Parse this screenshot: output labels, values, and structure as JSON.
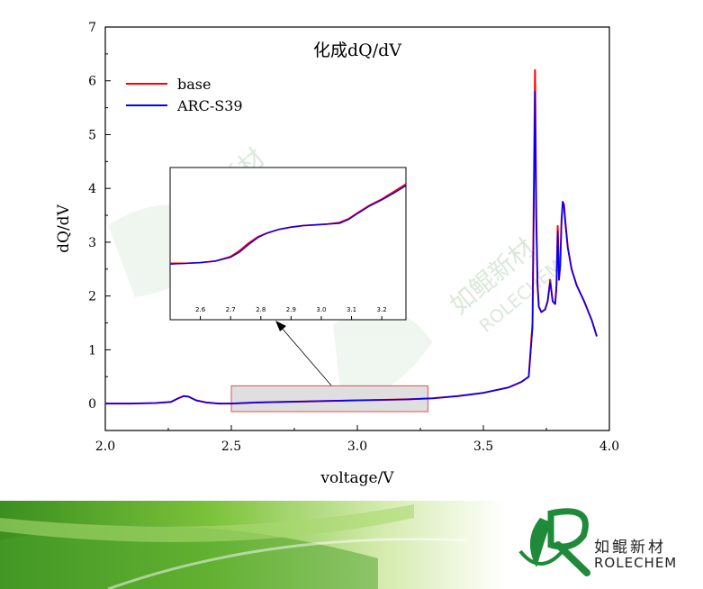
{
  "chart_data": {
    "type": "line",
    "title": "化成dQ/dV",
    "xlabel": "voltage/V",
    "ylabel": "dQ/dV",
    "xlim": [
      2.0,
      4.0
    ],
    "ylim": [
      -0.5,
      7.0
    ],
    "x_ticks": [
      "2.0",
      "2.5",
      "3.0",
      "3.5",
      "4.0"
    ],
    "y_ticks": [
      "0",
      "1",
      "2",
      "3",
      "4",
      "5",
      "6",
      "7"
    ],
    "legend_position": "top-left",
    "series": [
      {
        "name": "base",
        "color": "#ff0000",
        "x": [
          2.0,
          2.1,
          2.2,
          2.26,
          2.29,
          2.31,
          2.33,
          2.36,
          2.4,
          2.45,
          2.5,
          2.6,
          2.7,
          2.8,
          2.9,
          3.0,
          3.1,
          3.2,
          3.3,
          3.4,
          3.5,
          3.6,
          3.65,
          3.68,
          3.695,
          3.705,
          3.71,
          3.715,
          3.72,
          3.73,
          3.745,
          3.755,
          3.765,
          3.775,
          3.785,
          3.79,
          3.795,
          3.8,
          3.805,
          3.81,
          3.815,
          3.82,
          3.825,
          3.835,
          3.85,
          3.87,
          3.9,
          3.93,
          3.95
        ],
        "y": [
          0.0,
          0.0,
          0.01,
          0.03,
          0.1,
          0.14,
          0.13,
          0.06,
          0.02,
          0.0,
          0.0,
          0.02,
          0.03,
          0.04,
          0.05,
          0.06,
          0.07,
          0.08,
          0.1,
          0.14,
          0.2,
          0.3,
          0.4,
          0.5,
          1.5,
          6.2,
          3.5,
          2.2,
          1.8,
          1.7,
          1.75,
          1.9,
          2.3,
          1.9,
          1.85,
          2.2,
          3.3,
          2.3,
          2.6,
          3.4,
          3.75,
          3.7,
          3.4,
          2.9,
          2.5,
          2.2,
          1.9,
          1.55,
          1.25
        ]
      },
      {
        "name": "ARC-S39",
        "color": "#0000ff",
        "x": [
          2.0,
          2.1,
          2.2,
          2.26,
          2.29,
          2.31,
          2.33,
          2.36,
          2.4,
          2.45,
          2.5,
          2.6,
          2.7,
          2.8,
          2.9,
          3.0,
          3.1,
          3.2,
          3.3,
          3.4,
          3.5,
          3.6,
          3.65,
          3.68,
          3.695,
          3.705,
          3.71,
          3.715,
          3.72,
          3.73,
          3.745,
          3.755,
          3.765,
          3.775,
          3.785,
          3.79,
          3.795,
          3.8,
          3.805,
          3.81,
          3.815,
          3.82,
          3.825,
          3.835,
          3.85,
          3.87,
          3.9,
          3.93,
          3.95
        ],
        "y": [
          0.0,
          0.0,
          0.01,
          0.03,
          0.1,
          0.14,
          0.13,
          0.06,
          0.02,
          0.0,
          0.0,
          0.02,
          0.03,
          0.04,
          0.05,
          0.06,
          0.07,
          0.08,
          0.1,
          0.14,
          0.2,
          0.3,
          0.4,
          0.5,
          1.4,
          5.8,
          3.4,
          2.2,
          1.8,
          1.7,
          1.75,
          1.9,
          2.25,
          1.9,
          1.85,
          2.15,
          3.2,
          2.3,
          2.55,
          3.35,
          3.75,
          3.65,
          3.35,
          2.9,
          2.5,
          2.2,
          1.9,
          1.55,
          1.25
        ]
      }
    ],
    "inset": {
      "x_range": [
        2.5,
        3.28
      ],
      "x_ticks": [
        "2.6",
        "2.7",
        "2.8",
        "2.9",
        "3.0",
        "3.1",
        "3.2"
      ],
      "base": {
        "x": [
          2.5,
          2.55,
          2.6,
          2.65,
          2.7,
          2.73,
          2.76,
          2.79,
          2.82,
          2.86,
          2.9,
          2.94,
          2.98,
          3.02,
          3.06,
          3.09,
          3.12,
          3.16,
          3.2,
          3.24,
          3.28
        ],
        "y": [
          0.15,
          0.15,
          0.16,
          0.18,
          0.24,
          0.32,
          0.42,
          0.5,
          0.55,
          0.6,
          0.63,
          0.65,
          0.66,
          0.67,
          0.69,
          0.74,
          0.82,
          0.92,
          1.0,
          1.1,
          1.2
        ]
      },
      "arc": {
        "x": [
          2.5,
          2.55,
          2.6,
          2.65,
          2.7,
          2.73,
          2.76,
          2.79,
          2.82,
          2.86,
          2.9,
          2.94,
          2.98,
          3.02,
          3.06,
          3.09,
          3.12,
          3.16,
          3.2,
          3.24,
          3.28
        ],
        "y": [
          0.14,
          0.15,
          0.16,
          0.18,
          0.23,
          0.3,
          0.4,
          0.49,
          0.55,
          0.6,
          0.63,
          0.65,
          0.66,
          0.67,
          0.68,
          0.73,
          0.81,
          0.91,
          0.99,
          1.08,
          1.18
        ]
      },
      "y_range": [
        0.0,
        1.3
      ]
    },
    "zoom_box": {
      "x": [
        2.5,
        3.28
      ],
      "y": [
        -0.15,
        0.33
      ]
    }
  },
  "watermark": {
    "cn": "如鲲新材",
    "en": "ROLECHEM"
  },
  "logo": {
    "cn": "如鲲新材",
    "en": "ROLECHEM",
    "color": "#1f8a3a"
  }
}
